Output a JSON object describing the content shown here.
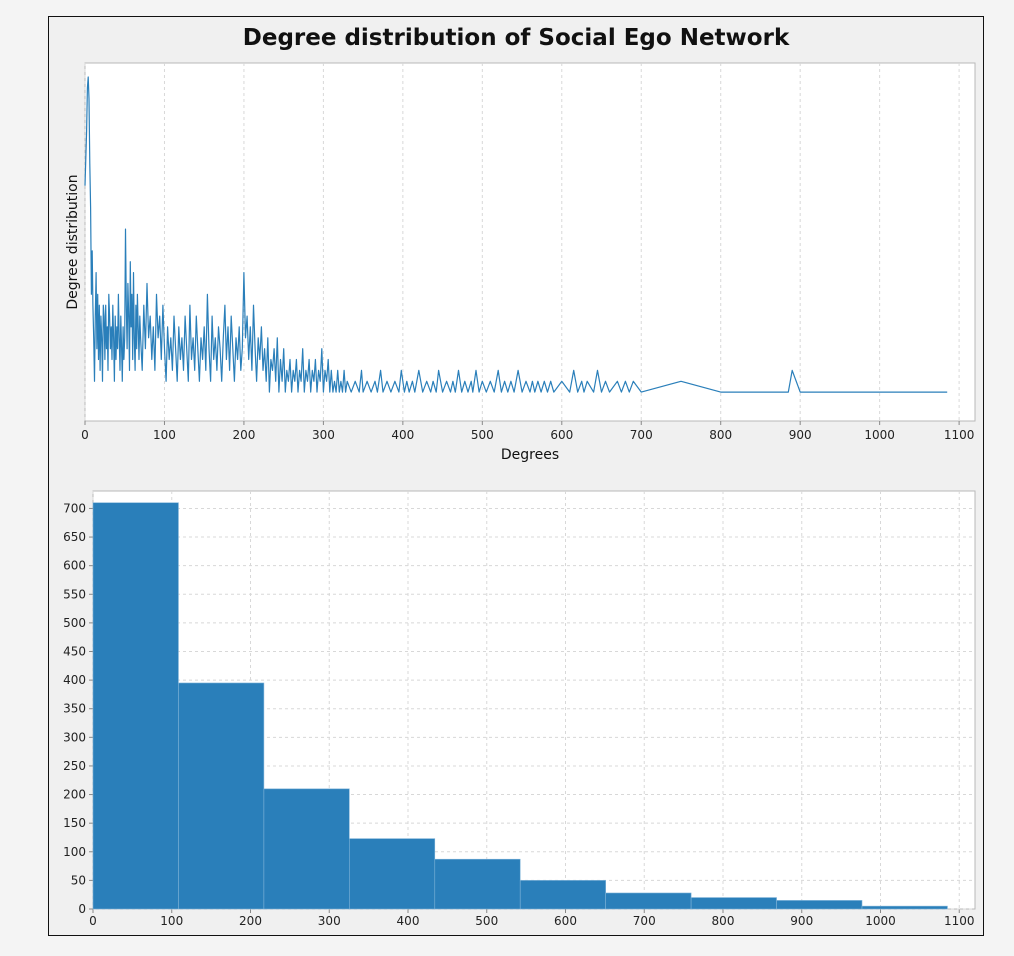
{
  "chart_data": [
    {
      "type": "line",
      "title": "Degree distribution of Social Ego Network",
      "xlabel": "Degrees",
      "ylabel": "Degree distribution",
      "xlim": [
        0,
        1120
      ],
      "xticks": [
        0,
        100,
        200,
        300,
        400,
        500,
        600,
        700,
        800,
        900,
        1000,
        1100
      ],
      "y_ticks_shown": false,
      "grid": true,
      "color": "#2a7fba",
      "series": [
        {
          "x": [
            0,
            2,
            3,
            4,
            5,
            6,
            7,
            8,
            9,
            10,
            11,
            12,
            13,
            14,
            15,
            16,
            17,
            18,
            19,
            20,
            21,
            22,
            23,
            24,
            25,
            26,
            27,
            28,
            29,
            30,
            31,
            32,
            33,
            34,
            35,
            36,
            37,
            38,
            39,
            40,
            41,
            42,
            43,
            44,
            45,
            46,
            47,
            48,
            49,
            50,
            51,
            52,
            53,
            54,
            55,
            56,
            57,
            58,
            59,
            60,
            61,
            62,
            63,
            64,
            65,
            66,
            67,
            68,
            69,
            70,
            72,
            74,
            76,
            78,
            80,
            82,
            84,
            86,
            88,
            90,
            92,
            94,
            96,
            98,
            100,
            102,
            104,
            106,
            108,
            110,
            112,
            114,
            116,
            118,
            120,
            122,
            124,
            126,
            128,
            130,
            132,
            134,
            136,
            138,
            140,
            142,
            144,
            146,
            148,
            150,
            152,
            154,
            156,
            158,
            160,
            162,
            164,
            166,
            168,
            170,
            172,
            174,
            176,
            178,
            180,
            182,
            184,
            186,
            188,
            190,
            192,
            194,
            196,
            198,
            200,
            202,
            204,
            206,
            208,
            210,
            212,
            214,
            216,
            218,
            220,
            222,
            224,
            226,
            228,
            230,
            232,
            234,
            236,
            238,
            240,
            242,
            244,
            246,
            248,
            250,
            252,
            254,
            256,
            258,
            260,
            262,
            264,
            266,
            268,
            270,
            272,
            274,
            276,
            278,
            280,
            282,
            284,
            286,
            288,
            290,
            292,
            294,
            296,
            298,
            300,
            302,
            304,
            306,
            308,
            310,
            312,
            314,
            316,
            318,
            320,
            322,
            324,
            326,
            328,
            330,
            335,
            340,
            345,
            348,
            350,
            355,
            360,
            365,
            368,
            372,
            375,
            380,
            385,
            390,
            395,
            398,
            402,
            405,
            408,
            412,
            415,
            420,
            425,
            430,
            435,
            438,
            442,
            445,
            450,
            455,
            460,
            463,
            466,
            470,
            474,
            478,
            482,
            486,
            488,
            492,
            496,
            500,
            505,
            510,
            515,
            520,
            524,
            528,
            532,
            536,
            540,
            545,
            550,
            555,
            560,
            563,
            566,
            570,
            574,
            578,
            582,
            586,
            590,
            600,
            610,
            615,
            620,
            625,
            628,
            632,
            640,
            645,
            650,
            655,
            660,
            670,
            675,
            680,
            685,
            690,
            700,
            750,
            800,
            850,
            870,
            880,
            885,
            890,
            900,
            950,
            1000,
            1050,
            1085
          ],
          "y": [
            20,
            25,
            29,
            30,
            28,
            22,
            18,
            10,
            14,
            9,
            6,
            2,
            8,
            12,
            5,
            10,
            4,
            9,
            3,
            8,
            6,
            2,
            9,
            8,
            4,
            9,
            5,
            7,
            3,
            10,
            8,
            5,
            7,
            4,
            9,
            6,
            2,
            8,
            4,
            7,
            5,
            10,
            6,
            3,
            8,
            5,
            2,
            7,
            4,
            6,
            16,
            9,
            5,
            11,
            8,
            3,
            13,
            7,
            10,
            4,
            12,
            6,
            3,
            9,
            5,
            10,
            7,
            4,
            8,
            6,
            3,
            9,
            5,
            11,
            6,
            8,
            4,
            7,
            3,
            10,
            6,
            8,
            4,
            9,
            5,
            2,
            7,
            4,
            6,
            3,
            8,
            5,
            2,
            7,
            4,
            6,
            3,
            8,
            5,
            2,
            9,
            4,
            6,
            3,
            8,
            5,
            2,
            6,
            4,
            7,
            3,
            10,
            5,
            2,
            8,
            4,
            6,
            3,
            7,
            5,
            2,
            6,
            9,
            4,
            7,
            3,
            8,
            5,
            2,
            6,
            4,
            7,
            3,
            5,
            12,
            6,
            8,
            4,
            7,
            3,
            9,
            5,
            2,
            6,
            4,
            7,
            3,
            5,
            2,
            6,
            1,
            4,
            3,
            5,
            2,
            6,
            1,
            4,
            2,
            5,
            1,
            3,
            2,
            4,
            1,
            3,
            2,
            4,
            1,
            3,
            2,
            5,
            1,
            3,
            2,
            4,
            1,
            3,
            2,
            4,
            1,
            3,
            2,
            5,
            1,
            3,
            2,
            4,
            1,
            3,
            1,
            2,
            1,
            3,
            1,
            2,
            1,
            3,
            1,
            2,
            1,
            2,
            1,
            3,
            1,
            2,
            1,
            2,
            1,
            3,
            1,
            2,
            1,
            2,
            1,
            3,
            1,
            2,
            1,
            2,
            1,
            3,
            1,
            2,
            1,
            2,
            1,
            3,
            1,
            2,
            1,
            2,
            1,
            3,
            1,
            2,
            1,
            2,
            1,
            3,
            1,
            2,
            1,
            2,
            1,
            3,
            1,
            2,
            1,
            2,
            1,
            3,
            1,
            2,
            1,
            2,
            1,
            2,
            1,
            2,
            1,
            2,
            1,
            2,
            1,
            3,
            1,
            2,
            1,
            2,
            1,
            3,
            1,
            2,
            1,
            2,
            1,
            2,
            1,
            2,
            1,
            2,
            1,
            1,
            1,
            1,
            1,
            3,
            1,
            1,
            1,
            1,
            1
          ]
        }
      ]
    },
    {
      "type": "bar",
      "subtype": "histogram",
      "bin_edges": [
        0,
        108.5,
        217,
        325.5,
        434,
        542.5,
        651,
        759.5,
        868,
        976.5,
        1085
      ],
      "values": [
        710,
        395,
        210,
        123,
        87,
        50,
        28,
        20,
        15,
        5
      ],
      "xlim": [
        0,
        1120
      ],
      "ylim": [
        0,
        720
      ],
      "xticks": [
        0,
        100,
        200,
        300,
        400,
        500,
        600,
        700,
        800,
        900,
        1000,
        1100
      ],
      "yticks": [
        0,
        50,
        100,
        150,
        200,
        250,
        300,
        350,
        400,
        450,
        500,
        550,
        600,
        650,
        700
      ],
      "grid": true,
      "color": "#2a7fba"
    }
  ]
}
